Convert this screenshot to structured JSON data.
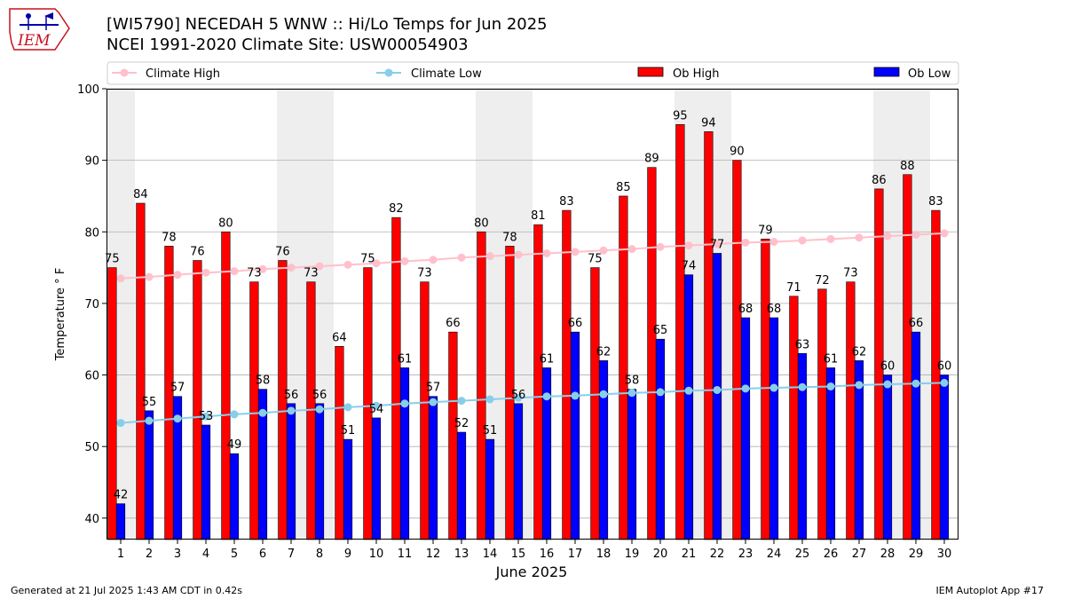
{
  "title": "[WI5790] NECEDAH 5 WNW :: Hi/Lo Temps for Jun 2025",
  "subtitle": "NCEI 1991-2020 Climate Site: USW00054903",
  "logo_text": "IEM",
  "footer_left": "Generated at 21 Jul 2025 1:43 AM CDT in 0.42s",
  "footer_right": "IEM Autoplot App #17",
  "colors": {
    "ob_high": "#ff0000",
    "ob_low": "#0000ff",
    "climate_high": "#ffc0cb",
    "climate_low": "#87ceeb",
    "weekend_band": "#eeeeee",
    "grid": "#b0b0b0"
  },
  "chart_data": {
    "type": "bar",
    "xlabel": "June 2025",
    "ylabel": "Temperature ° F",
    "ylim": [
      37,
      100
    ],
    "yticks": [
      40,
      50,
      60,
      70,
      80,
      90,
      100
    ],
    "grid": "horizontal",
    "legend": [
      "Climate High",
      "Climate Low",
      "Ob High",
      "Ob Low"
    ],
    "legend_placement": "top",
    "shaded_days": [
      1,
      7,
      8,
      14,
      15,
      21,
      22,
      28,
      29
    ],
    "categories": [
      "1",
      "2",
      "3",
      "4",
      "5",
      "6",
      "7",
      "8",
      "9",
      "10",
      "11",
      "12",
      "13",
      "14",
      "15",
      "16",
      "17",
      "18",
      "19",
      "20",
      "21",
      "22",
      "23",
      "24",
      "25",
      "26",
      "27",
      "28",
      "29",
      "30"
    ],
    "series": [
      {
        "name": "Ob High",
        "kind": "bar",
        "values": [
          75,
          84,
          78,
          76,
          80,
          73,
          76,
          73,
          64,
          75,
          82,
          73,
          66,
          80,
          78,
          81,
          83,
          75,
          85,
          89,
          95,
          94,
          90,
          79,
          71,
          72,
          73,
          86,
          88,
          83
        ]
      },
      {
        "name": "Ob Low",
        "kind": "bar",
        "values": [
          42,
          55,
          57,
          53,
          49,
          58,
          56,
          56,
          51,
          54,
          61,
          57,
          52,
          51,
          56,
          61,
          66,
          62,
          58,
          65,
          74,
          77,
          68,
          68,
          63,
          61,
          62,
          60,
          66,
          60
        ]
      },
      {
        "name": "Climate High",
        "kind": "line",
        "values": [
          73.5,
          73.7,
          74.0,
          74.3,
          74.5,
          74.8,
          75.0,
          75.2,
          75.4,
          75.6,
          75.9,
          76.1,
          76.4,
          76.6,
          76.8,
          77.0,
          77.2,
          77.4,
          77.6,
          77.9,
          78.1,
          78.3,
          78.5,
          78.6,
          78.8,
          79.0,
          79.2,
          79.4,
          79.6,
          79.8
        ]
      },
      {
        "name": "Climate Low",
        "kind": "line",
        "values": [
          53.3,
          53.6,
          53.9,
          54.2,
          54.5,
          54.7,
          55.0,
          55.2,
          55.5,
          55.7,
          56.0,
          56.2,
          56.4,
          56.6,
          56.8,
          57.0,
          57.1,
          57.3,
          57.5,
          57.6,
          57.8,
          57.9,
          58.1,
          58.2,
          58.3,
          58.4,
          58.6,
          58.7,
          58.8,
          58.9
        ]
      }
    ]
  }
}
